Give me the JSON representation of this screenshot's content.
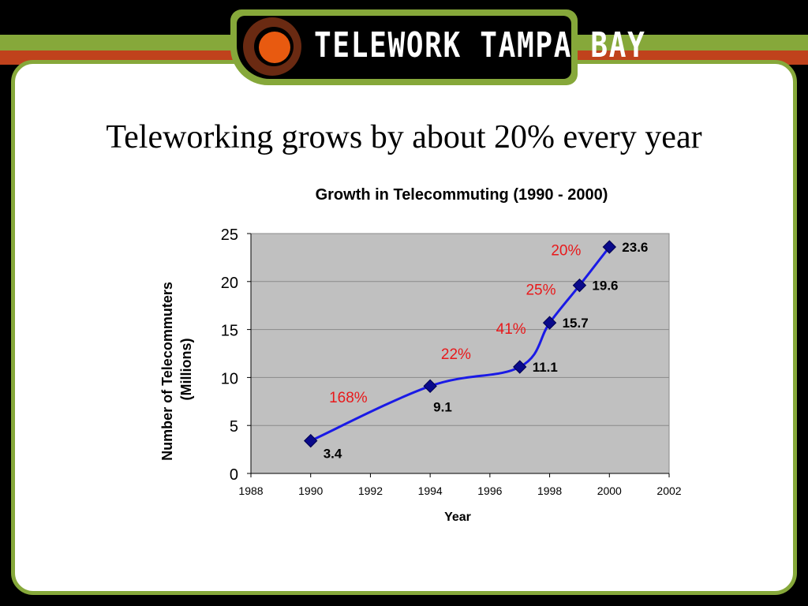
{
  "brand": {
    "logo_text": "TELEWORK TAMPA BAY"
  },
  "slide": {
    "title": "Teleworking grows by about 20% every year"
  },
  "chart_data": {
    "type": "line",
    "title": "Growth in Telecommuting (1990 - 2000)",
    "xlabel": "Year",
    "ylabel": [
      "Number of Telecommuters",
      "(Millions)"
    ],
    "xlim": [
      1988,
      2002
    ],
    "ylim": [
      0,
      25
    ],
    "xticks": [
      1988,
      1990,
      1992,
      1994,
      1996,
      1998,
      2000,
      2002
    ],
    "yticks": [
      0,
      5,
      10,
      15,
      20,
      25
    ],
    "grid": true,
    "points": [
      {
        "x": 1990,
        "y": 3.4,
        "label": "3.4"
      },
      {
        "x": 1994,
        "y": 9.1,
        "label": "9.1"
      },
      {
        "x": 1997,
        "y": 11.1,
        "label": "11.1"
      },
      {
        "x": 1998,
        "y": 15.7,
        "label": "15.7"
      },
      {
        "x": 1999,
        "y": 19.6,
        "label": "19.6"
      },
      {
        "x": 2000,
        "y": 23.6,
        "label": "23.6"
      }
    ],
    "growth_annotations": [
      "168%",
      "22%",
      "41%",
      "25%",
      "20%"
    ],
    "colors": {
      "line": "#1a1ae6",
      "marker": "#0a0a8a",
      "annotation": "#e8191b",
      "plot_bg": "#c0c0c0"
    }
  }
}
